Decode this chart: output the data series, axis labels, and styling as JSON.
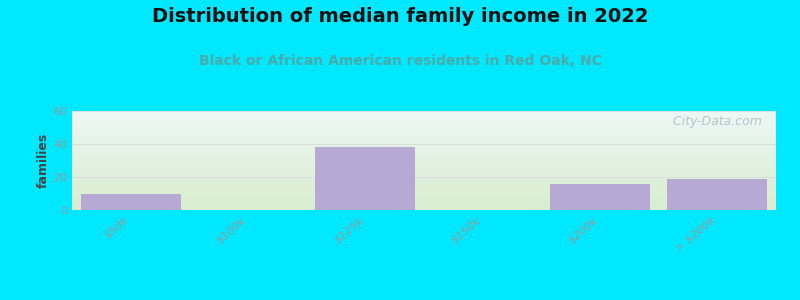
{
  "title": "Distribution of median family income in 2022",
  "subtitle": "Black or African American residents in Red Oak, NC",
  "ylabel": "families",
  "tick_labels": [
    "$50k",
    "$100k",
    "$125k",
    "$150k",
    "$200k",
    "> $200k"
  ],
  "values": [
    10,
    0,
    38,
    0,
    16,
    19
  ],
  "bar_color": "#b8a9d4",
  "ylim": [
    0,
    60
  ],
  "yticks": [
    0,
    20,
    40,
    60
  ],
  "background_color": "#00e8ff",
  "plot_bg_top": "#e8f5f0",
  "plot_bg_bottom": "#d8eece",
  "title_fontsize": 14,
  "subtitle_fontsize": 10,
  "subtitle_color": "#4aabaa",
  "ylabel_fontsize": 9,
  "watermark_text": "  City-Data.com",
  "watermark_color": "#aabbcc",
  "grid_color": "#dddddd",
  "tick_label_color": "#999999",
  "bar_width": 0.85,
  "title_color": "#111111"
}
